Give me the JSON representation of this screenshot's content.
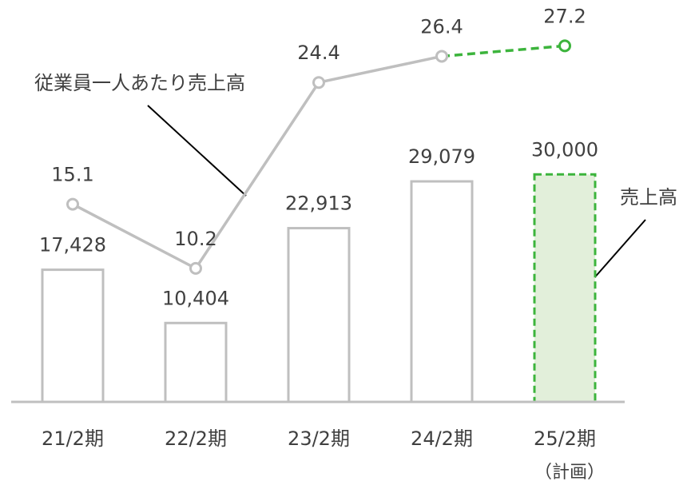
{
  "chart_data": {
    "type": "bar",
    "categories": [
      "21/2期",
      "22/2期",
      "23/2期",
      "24/2期",
      "25/2期"
    ],
    "category_notes": [
      null,
      null,
      null,
      null,
      "（計画）"
    ],
    "ylim": [
      0,
      53000
    ],
    "y2lim": [
      0,
      30.7
    ],
    "series": [
      {
        "name": "売上高",
        "type": "bar",
        "color": "#bfbfbf",
        "plan_color": "#3cb43c",
        "plan_fill": "#e2efda",
        "values": [
          17428,
          10404,
          22913,
          29079,
          30000
        ],
        "value_labels": [
          "17,428",
          "10,404",
          "22,913",
          "29,079",
          "30,000"
        ]
      },
      {
        "name": "従業員一人あたり売上高",
        "type": "line",
        "axis": "y2",
        "color": "#bfbfbf",
        "plan_color": "#3cb43c",
        "values": [
          15.1,
          10.2,
          24.4,
          26.4,
          27.2
        ]
      }
    ]
  }
}
